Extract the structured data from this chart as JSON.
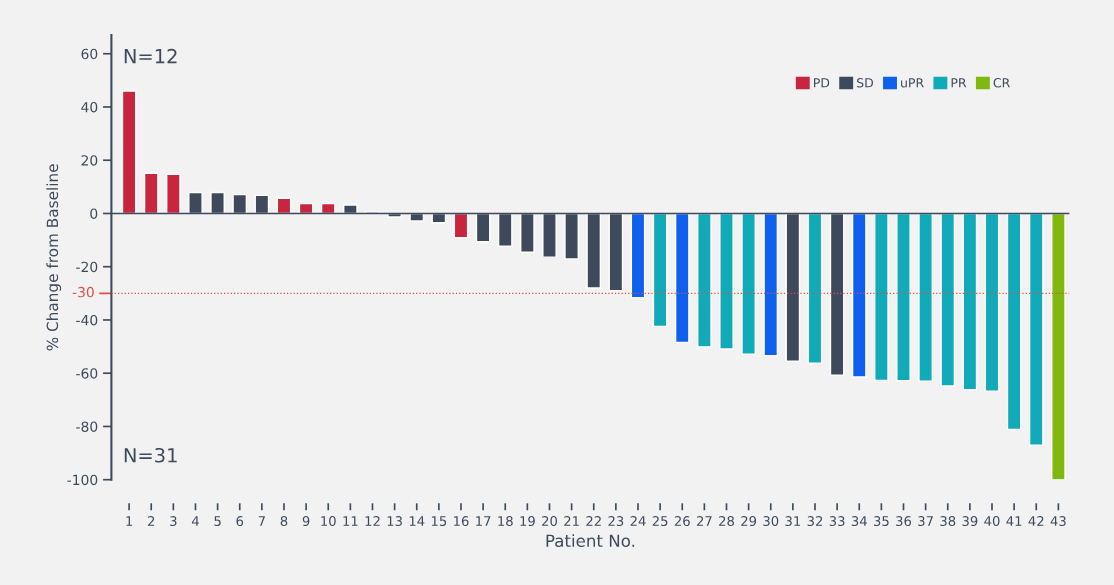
{
  "chart_data": {
    "type": "bar",
    "xlabel": "Patient No.",
    "ylabel": "% Change from Baseline",
    "categories": [
      "1",
      "2",
      "3",
      "4",
      "5",
      "6",
      "7",
      "8",
      "9",
      "10",
      "11",
      "12",
      "13",
      "14",
      "15",
      "16",
      "17",
      "18",
      "19",
      "20",
      "21",
      "22",
      "23",
      "24",
      "25",
      "26",
      "27",
      "28",
      "29",
      "30",
      "31",
      "32",
      "33",
      "34",
      "35",
      "36",
      "37",
      "38",
      "39",
      "40",
      "41",
      "42",
      "43"
    ],
    "series": [
      {
        "name": "PD",
        "color": "#c8253f",
        "values": [
          46,
          15.1,
          14.7,
          null,
          null,
          null,
          null,
          5.7,
          3.7,
          3.7,
          null,
          null,
          null,
          null,
          null,
          -9.1,
          null,
          null,
          null,
          null,
          null,
          null,
          null,
          null,
          null,
          null,
          null,
          null,
          null,
          null,
          null,
          null,
          null,
          null,
          null,
          null,
          null,
          null,
          null,
          null,
          null,
          null,
          null
        ]
      },
      {
        "name": "SD",
        "color": "#3e4a5c",
        "values": [
          null,
          null,
          null,
          7.9,
          7.9,
          7.1,
          6.8,
          null,
          null,
          null,
          3.2,
          0.6,
          -1.3,
          -2.8,
          -3.5,
          null,
          -10.6,
          -12.3,
          -14.5,
          -16.4,
          -17.1,
          -28,
          -29,
          null,
          null,
          null,
          null,
          null,
          null,
          null,
          -55.5,
          null,
          -60.7,
          null,
          null,
          null,
          null,
          null,
          null,
          null,
          null,
          null,
          null
        ]
      },
      {
        "name": "uPR",
        "color": "#1060f0",
        "values": [
          null,
          null,
          null,
          null,
          null,
          null,
          null,
          null,
          null,
          null,
          null,
          null,
          null,
          null,
          null,
          null,
          null,
          null,
          null,
          null,
          null,
          null,
          null,
          -31.6,
          null,
          -48.4,
          null,
          null,
          null,
          -53.4,
          null,
          null,
          null,
          -61.4,
          null,
          null,
          null,
          null,
          null,
          null,
          null,
          null,
          null
        ]
      },
      {
        "name": "PR",
        "color": "#10aab8",
        "values": [
          null,
          null,
          null,
          null,
          null,
          null,
          null,
          null,
          null,
          null,
          null,
          null,
          null,
          null,
          null,
          null,
          null,
          null,
          null,
          null,
          null,
          null,
          null,
          null,
          -42.4,
          null,
          -50.1,
          -50.9,
          -52.9,
          null,
          null,
          -56.2,
          null,
          null,
          -62.7,
          -62.8,
          -63,
          -64.8,
          -66.2,
          -66.8,
          -81.1,
          -87,
          null
        ]
      },
      {
        "name": "CR",
        "color": "#80b810",
        "values": [
          null,
          null,
          null,
          null,
          null,
          null,
          null,
          null,
          null,
          null,
          null,
          null,
          null,
          null,
          null,
          null,
          null,
          null,
          null,
          null,
          null,
          null,
          null,
          null,
          null,
          null,
          null,
          null,
          null,
          null,
          null,
          null,
          null,
          null,
          null,
          null,
          null,
          null,
          null,
          null,
          null,
          null,
          -100
        ]
      }
    ],
    "ylim": [
      -100,
      67
    ],
    "yticks": [
      60,
      40,
      20,
      0,
      -20,
      -40,
      -60,
      -80,
      -100
    ],
    "ref_lines": [
      {
        "axis": "y",
        "value": 0,
        "color": "#3e4a5c",
        "line_style": "solid"
      },
      {
        "axis": "y",
        "value": -30,
        "label": "-30",
        "color": "#e0504a",
        "line_style": "dotted"
      }
    ],
    "annotations": [
      "N=12",
      "N=31"
    ],
    "legend": "top right",
    "grid": false
  }
}
